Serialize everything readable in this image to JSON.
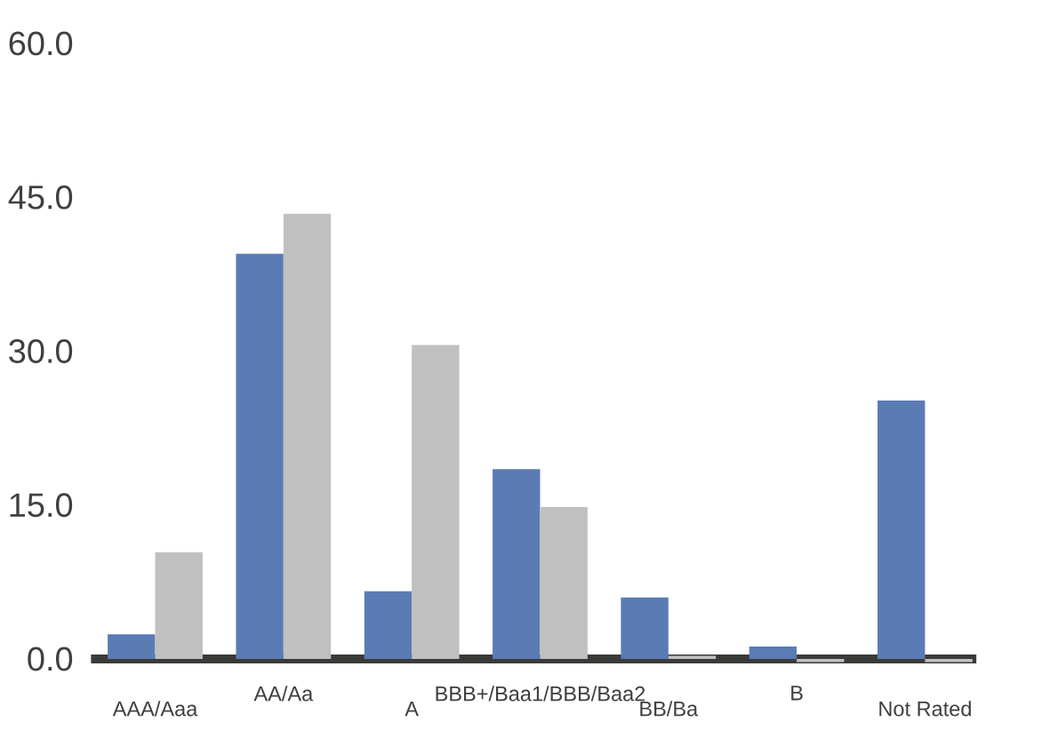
{
  "chart_data": {
    "type": "bar",
    "categories": [
      "AAA/Aaa",
      "AA/Aa",
      "A",
      "BBB+/Baa1/BBB/Baa2",
      "BB/Ba",
      "B",
      "Not Rated"
    ],
    "series": [
      {
        "color": "#5b7bb5",
        "values": [
          2.4,
          39.5,
          6.6,
          18.5,
          6.0,
          1.2,
          25.2
        ]
      },
      {
        "color": "#c0c0c0",
        "values": [
          10.4,
          43.4,
          30.6,
          14.8,
          0.3,
          -0.3,
          -0.3
        ]
      }
    ],
    "ylim": [
      -1,
      60
    ],
    "yticks": [
      {
        "value": 0,
        "label": "0.0"
      },
      {
        "value": 15,
        "label": "15.0"
      },
      {
        "value": 30,
        "label": "30.0"
      },
      {
        "value": 45,
        "label": "45.0"
      },
      {
        "value": 60,
        "label": "60.0"
      }
    ]
  }
}
